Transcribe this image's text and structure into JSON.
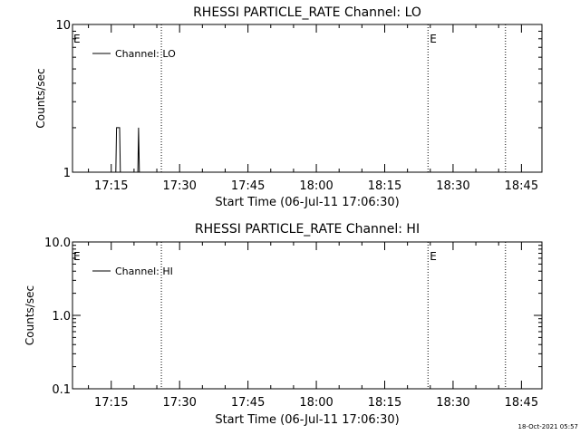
{
  "chart_data": [
    {
      "type": "line",
      "title": "RHESSI PARTICLE_RATE Channel: LO",
      "xlabel": "Start Time (06-Jul-11 17:06:30)",
      "ylabel": "Counts/sec",
      "yscale": "log",
      "ylim": [
        1,
        10
      ],
      "y_ticks": [
        1,
        10
      ],
      "y_tick_labels": [
        "1",
        "10"
      ],
      "x_range": [
        "17:06:30",
        "18:49:30"
      ],
      "x_ticks": [
        "17:15",
        "17:30",
        "17:45",
        "18:00",
        "18:15",
        "18:30",
        "18:45"
      ],
      "legend": {
        "position": "top-left",
        "entries": [
          "Channel: LO"
        ]
      },
      "series": [
        {
          "name": "Channel: LO",
          "x": [
            "17:16:00",
            "17:16:10",
            "17:16:20",
            "17:16:40",
            "17:16:50",
            "17:17:00",
            "17:20:50",
            "17:21:00",
            "17:21:10"
          ],
          "y": [
            1,
            2,
            2,
            2,
            2,
            1,
            1,
            2,
            1
          ]
        }
      ],
      "vertical_markers": [
        {
          "time": "17:26:00",
          "label": ""
        },
        {
          "time": "18:24:30",
          "label": "E"
        },
        {
          "time": "18:41:30",
          "label": ""
        }
      ],
      "edge_label": "E"
    },
    {
      "type": "line",
      "title": "RHESSI PARTICLE_RATE Channel: HI",
      "xlabel": "Start Time (06-Jul-11 17:06:30)",
      "ylabel": "Counts/sec",
      "yscale": "log",
      "ylim": [
        0.1,
        10
      ],
      "y_ticks": [
        0.1,
        1,
        10
      ],
      "y_tick_labels": [
        "0.1",
        "1.0",
        "10.0"
      ],
      "x_range": [
        "17:06:30",
        "18:49:30"
      ],
      "x_ticks": [
        "17:15",
        "17:30",
        "17:45",
        "18:00",
        "18:15",
        "18:30",
        "18:45"
      ],
      "legend": {
        "position": "top-left",
        "entries": [
          "Channel: HI"
        ]
      },
      "series": [
        {
          "name": "Channel: HI",
          "x": [],
          "y": []
        }
      ],
      "vertical_markers": [
        {
          "time": "17:26:00",
          "label": ""
        },
        {
          "time": "18:24:30",
          "label": "E"
        },
        {
          "time": "18:41:30",
          "label": ""
        }
      ],
      "edge_label": "E"
    }
  ],
  "footer": {
    "timestamp": "18-Oct-2021 05:57"
  }
}
